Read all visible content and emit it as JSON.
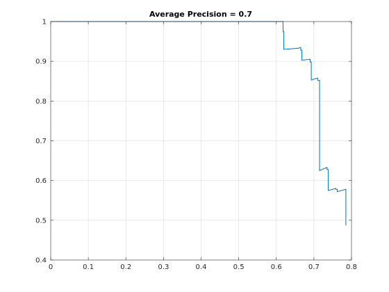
{
  "chart_data": {
    "type": "line",
    "title": "Average Precision = 0.7",
    "xlabel": "",
    "ylabel": "",
    "xlim": [
      0,
      0.8
    ],
    "ylim": [
      0.4,
      1
    ],
    "xticks": [
      0,
      0.1,
      0.2,
      0.3,
      0.4,
      0.5,
      0.6,
      0.7,
      0.8
    ],
    "yticks": [
      0.4,
      0.5,
      0.6,
      0.7,
      0.8,
      0.9,
      1
    ],
    "xtick_labels": [
      "0",
      "0.1",
      "0.2",
      "0.3",
      "0.4",
      "0.5",
      "0.6",
      "0.7",
      "0.8"
    ],
    "ytick_labels": [
      "0.4",
      "0.5",
      "0.6",
      "0.7",
      "0.8",
      "0.9",
      "1"
    ],
    "grid": true,
    "series": [
      {
        "color": "#0072bd",
        "x": [
          0,
          0.618,
          0.618,
          0.62,
          0.62,
          0.66,
          0.665,
          0.665,
          0.668,
          0.668,
          0.69,
          0.69,
          0.693,
          0.693,
          0.71,
          0.71,
          0.715,
          0.715,
          0.735,
          0.735,
          0.738,
          0.738,
          0.758,
          0.758,
          0.762,
          0.762,
          0.785,
          0.785
        ],
        "y": [
          1,
          1,
          0.975,
          0.975,
          0.93,
          0.933,
          0.935,
          0.928,
          0.928,
          0.903,
          0.905,
          0.898,
          0.898,
          0.853,
          0.858,
          0.852,
          0.852,
          0.625,
          0.633,
          0.628,
          0.628,
          0.575,
          0.58,
          0.578,
          0.578,
          0.572,
          0.578,
          0.487
        ]
      }
    ]
  }
}
